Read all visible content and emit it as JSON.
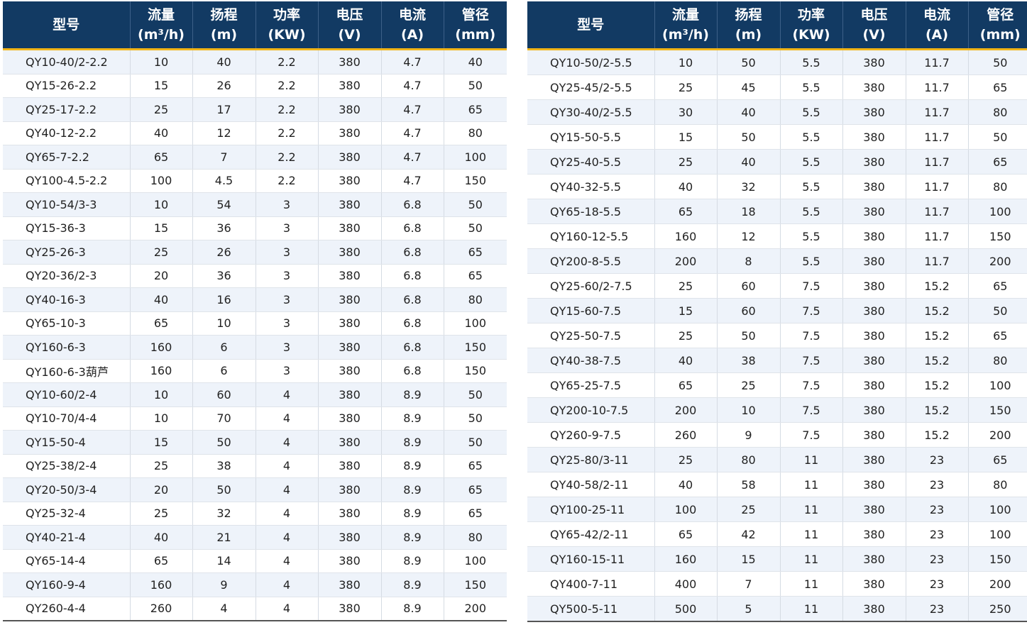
{
  "headers": [
    {
      "l1": "型号",
      "l2": ""
    },
    {
      "l1": "流量",
      "l2": "(m³/h)"
    },
    {
      "l1": "扬程",
      "l2": "(m)"
    },
    {
      "l1": "功率",
      "l2": "(KW)"
    },
    {
      "l1": "电压",
      "l2": "(V)"
    },
    {
      "l1": "电流",
      "l2": "(A)"
    },
    {
      "l1": "管径",
      "l2": "(mm)"
    }
  ],
  "left_rows": [
    [
      "QY10-40/2-2.2",
      "10",
      "40",
      "2.2",
      "380",
      "4.7",
      "40"
    ],
    [
      "QY15-26-2.2",
      "15",
      "26",
      "2.2",
      "380",
      "4.7",
      "50"
    ],
    [
      "QY25-17-2.2",
      "25",
      "17",
      "2.2",
      "380",
      "4.7",
      "65"
    ],
    [
      "QY40-12-2.2",
      "40",
      "12",
      "2.2",
      "380",
      "4.7",
      "80"
    ],
    [
      "QY65-7-2.2",
      "65",
      "7",
      "2.2",
      "380",
      "4.7",
      "100"
    ],
    [
      "QY100-4.5-2.2",
      "100",
      "4.5",
      "2.2",
      "380",
      "4.7",
      "150"
    ],
    [
      "QY10-54/3-3",
      "10",
      "54",
      "3",
      "380",
      "6.8",
      "50"
    ],
    [
      "QY15-36-3",
      "15",
      "36",
      "3",
      "380",
      "6.8",
      "50"
    ],
    [
      "QY25-26-3",
      "25",
      "26",
      "3",
      "380",
      "6.8",
      "65"
    ],
    [
      "QY20-36/2-3",
      "20",
      "36",
      "3",
      "380",
      "6.8",
      "65"
    ],
    [
      "QY40-16-3",
      "40",
      "16",
      "3",
      "380",
      "6.8",
      "80"
    ],
    [
      "QY65-10-3",
      "65",
      "10",
      "3",
      "380",
      "6.8",
      "100"
    ],
    [
      "QY160-6-3",
      "160",
      "6",
      "3",
      "380",
      "6.8",
      "150"
    ],
    [
      "QY160-6-3葫芦",
      "160",
      "6",
      "3",
      "380",
      "6.8",
      "150"
    ],
    [
      "QY10-60/2-4",
      "10",
      "60",
      "4",
      "380",
      "8.9",
      "50"
    ],
    [
      "QY10-70/4-4",
      "10",
      "70",
      "4",
      "380",
      "8.9",
      "50"
    ],
    [
      "QY15-50-4",
      "15",
      "50",
      "4",
      "380",
      "8.9",
      "50"
    ],
    [
      "QY25-38/2-4",
      "25",
      "38",
      "4",
      "380",
      "8.9",
      "65"
    ],
    [
      "QY20-50/3-4",
      "20",
      "50",
      "4",
      "380",
      "8.9",
      "65"
    ],
    [
      "QY25-32-4",
      "25",
      "32",
      "4",
      "380",
      "8.9",
      "65"
    ],
    [
      "QY40-21-4",
      "40",
      "21",
      "4",
      "380",
      "8.9",
      "80"
    ],
    [
      "QY65-14-4",
      "65",
      "14",
      "4",
      "380",
      "8.9",
      "100"
    ],
    [
      "QY160-9-4",
      "160",
      "9",
      "4",
      "380",
      "8.9",
      "150"
    ],
    [
      "QY260-4-4",
      "260",
      "4",
      "4",
      "380",
      "8.9",
      "200"
    ]
  ],
  "right_rows": [
    [
      "QY10-50/2-5.5",
      "10",
      "50",
      "5.5",
      "380",
      "11.7",
      "50"
    ],
    [
      "QY25-45/2-5.5",
      "25",
      "45",
      "5.5",
      "380",
      "11.7",
      "65"
    ],
    [
      "QY30-40/2-5.5",
      "30",
      "40",
      "5.5",
      "380",
      "11.7",
      "80"
    ],
    [
      "QY15-50-5.5",
      "15",
      "50",
      "5.5",
      "380",
      "11.7",
      "50"
    ],
    [
      "QY25-40-5.5",
      "25",
      "40",
      "5.5",
      "380",
      "11.7",
      "65"
    ],
    [
      "QY40-32-5.5",
      "40",
      "32",
      "5.5",
      "380",
      "11.7",
      "80"
    ],
    [
      "QY65-18-5.5",
      "65",
      "18",
      "5.5",
      "380",
      "11.7",
      "100"
    ],
    [
      "QY160-12-5.5",
      "160",
      "12",
      "5.5",
      "380",
      "11.7",
      "150"
    ],
    [
      "QY200-8-5.5",
      "200",
      "8",
      "5.5",
      "380",
      "11.7",
      "200"
    ],
    [
      "QY25-60/2-7.5",
      "25",
      "60",
      "7.5",
      "380",
      "15.2",
      "65"
    ],
    [
      "QY15-60-7.5",
      "15",
      "60",
      "7.5",
      "380",
      "15.2",
      "50"
    ],
    [
      "QY25-50-7.5",
      "25",
      "50",
      "7.5",
      "380",
      "15.2",
      "65"
    ],
    [
      "QY40-38-7.5",
      "40",
      "38",
      "7.5",
      "380",
      "15.2",
      "80"
    ],
    [
      "QY65-25-7.5",
      "65",
      "25",
      "7.5",
      "380",
      "15.2",
      "100"
    ],
    [
      "QY200-10-7.5",
      "200",
      "10",
      "7.5",
      "380",
      "15.2",
      "150"
    ],
    [
      "QY260-9-7.5",
      "260",
      "9",
      "7.5",
      "380",
      "15.2",
      "200"
    ],
    [
      "QY25-80/3-11",
      "25",
      "80",
      "11",
      "380",
      "23",
      "65"
    ],
    [
      "QY40-58/2-11",
      "40",
      "58",
      "11",
      "380",
      "23",
      "80"
    ],
    [
      "QY100-25-11",
      "100",
      "25",
      "11",
      "380",
      "23",
      "100"
    ],
    [
      "QY65-42/2-11",
      "65",
      "42",
      "11",
      "380",
      "23",
      "100"
    ],
    [
      "QY160-15-11",
      "160",
      "15",
      "11",
      "380",
      "23",
      "150"
    ],
    [
      "QY400-7-11",
      "400",
      "7",
      "11",
      "380",
      "23",
      "200"
    ],
    [
      "QY500-5-11",
      "500",
      "5",
      "11",
      "380",
      "23",
      "250"
    ]
  ]
}
